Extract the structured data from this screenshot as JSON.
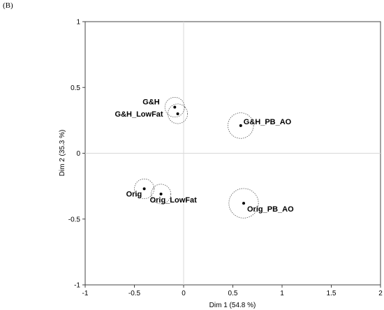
{
  "panel_label": "(B)",
  "chart_data": {
    "type": "scatter",
    "xlabel": "Dim 1 (54.8 %)",
    "ylabel": "Dim 2 (35.3 %)",
    "xlim": [
      -1,
      2
    ],
    "ylim": [
      -1,
      1
    ],
    "x_ticks": [
      -1,
      -0.5,
      0,
      0.5,
      1,
      1.5,
      2
    ],
    "y_ticks": [
      -1,
      -0.5,
      0,
      0.5,
      1
    ],
    "x_tick_labels": [
      "-1",
      "-0.5",
      "0",
      "0.5",
      "1",
      "1.5",
      "2"
    ],
    "y_tick_labels": [
      "-1",
      "-0.5",
      "0",
      "0.5",
      "1"
    ],
    "grid": false,
    "reference_lines": [
      0
    ],
    "points": [
      {
        "label": "G&H",
        "x": -0.09,
        "y": 0.35,
        "r": 0.1
      },
      {
        "label": "G&H_LowFat",
        "x": -0.06,
        "y": 0.3,
        "r": 0.1
      },
      {
        "label": "G&H_PB_AO",
        "x": 0.58,
        "y": 0.21,
        "r": 0.13
      },
      {
        "label": "Orig",
        "x": -0.4,
        "y": -0.27,
        "r": 0.1
      },
      {
        "label": "Orig_LowFat",
        "x": -0.23,
        "y": -0.31,
        "r": 0.1
      },
      {
        "label": "Orig_PB_AO",
        "x": 0.61,
        "y": -0.38,
        "r": 0.15
      }
    ]
  }
}
